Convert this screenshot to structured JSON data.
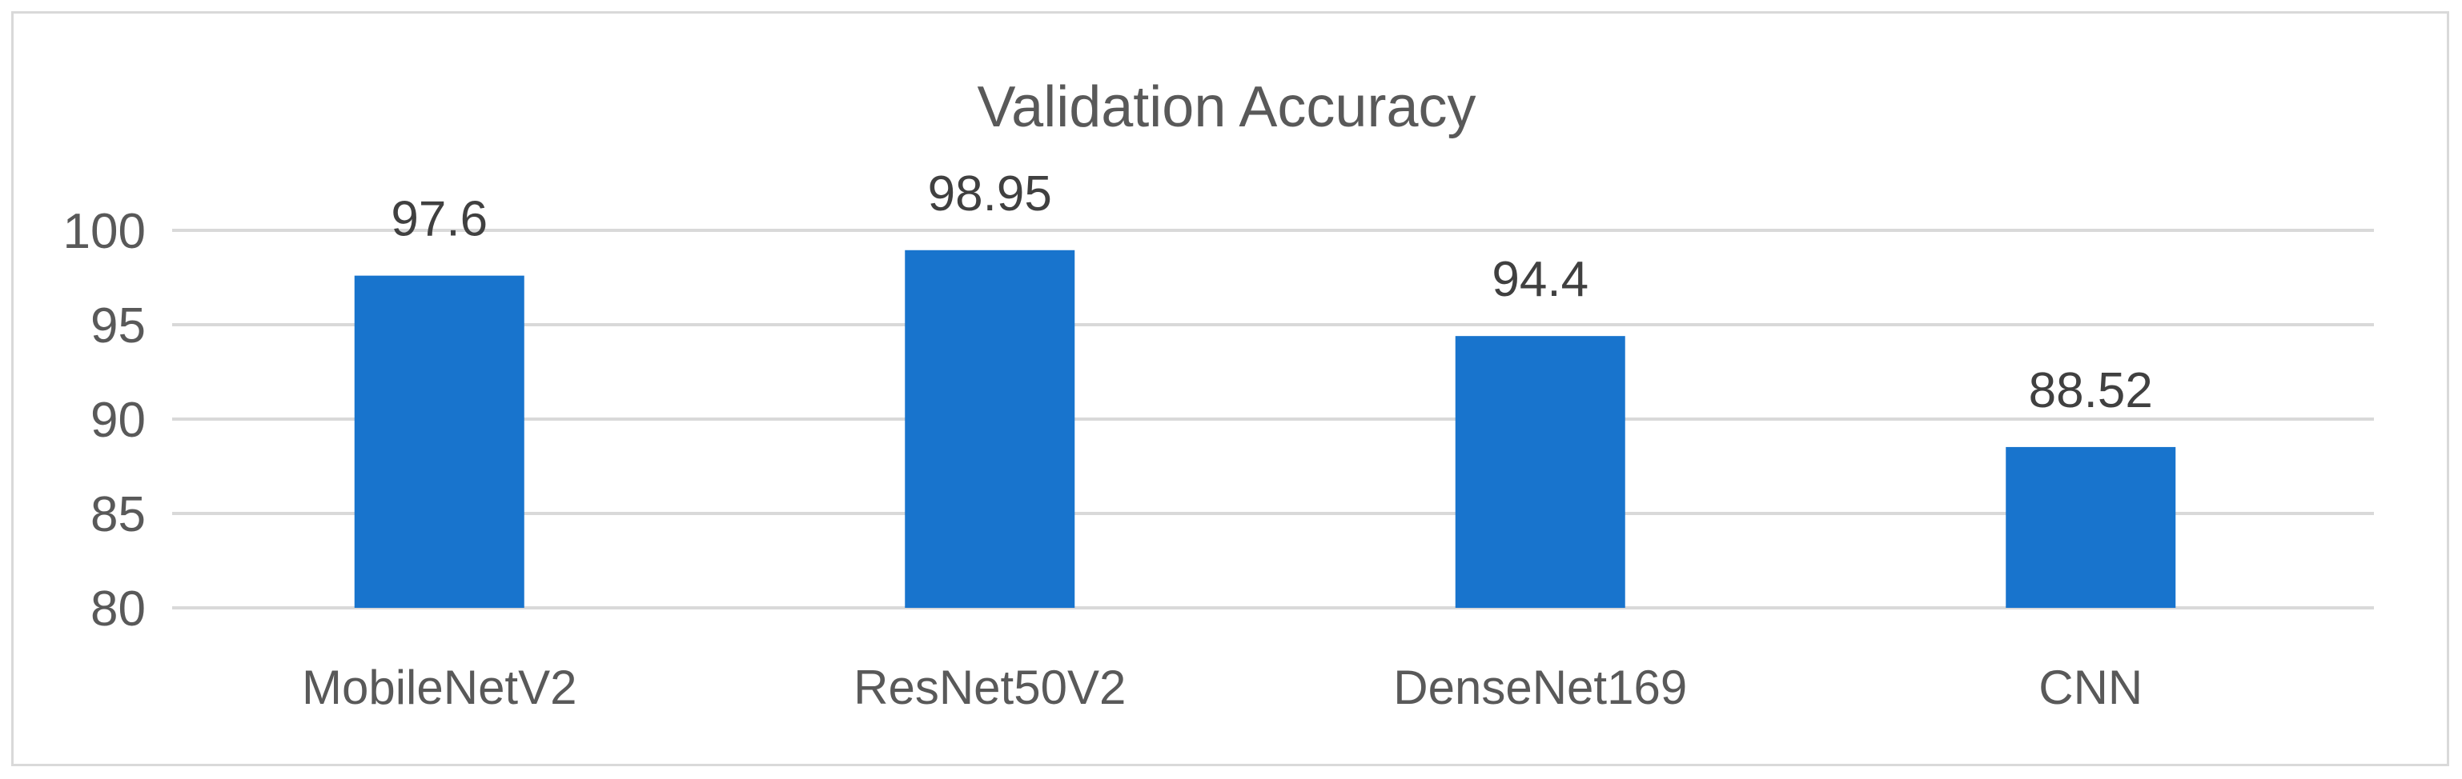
{
  "chart_data": {
    "type": "bar",
    "title": "Validation Accuracy",
    "xlabel": "",
    "ylabel": "",
    "categories": [
      "MobileNetV2",
      "ResNet50V2",
      "DenseNet169",
      "CNN"
    ],
    "values": [
      97.6,
      98.95,
      94.4,
      88.52
    ],
    "data_labels": [
      "97.6",
      "98.95",
      "94.4",
      "88.52"
    ],
    "ylim": [
      80,
      100
    ],
    "yticks": [
      80,
      85,
      90,
      95,
      100
    ],
    "grid": true,
    "legend": "none",
    "colors": {
      "bar": "#1874CD",
      "grid": "#d9d9d9",
      "text": "#595959"
    }
  }
}
